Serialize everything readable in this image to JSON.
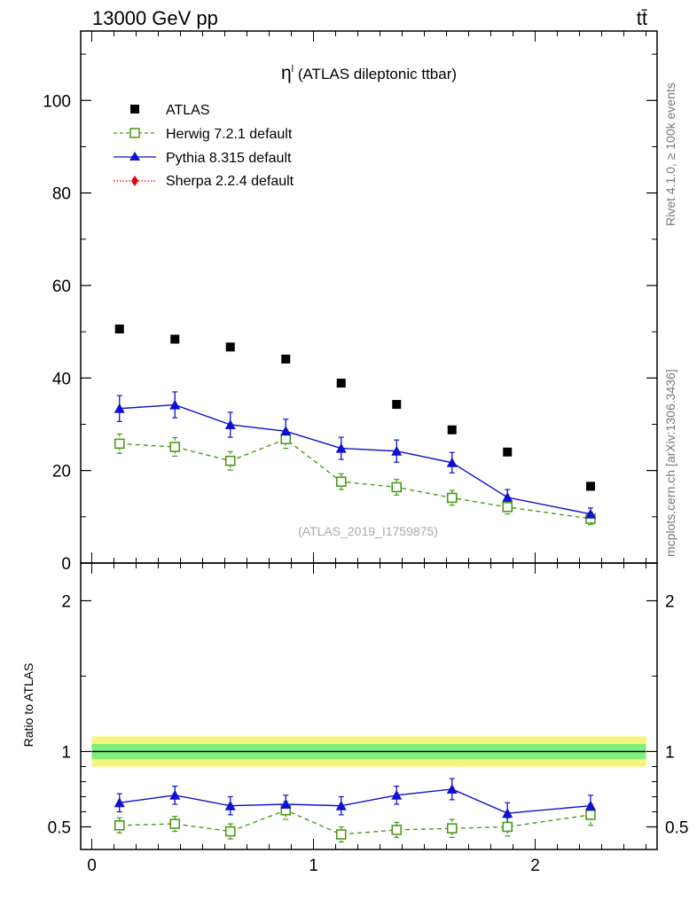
{
  "header": {
    "left": "13000 GeV pp",
    "right": "tt̄"
  },
  "side": {
    "rivet": "Rivet 4.1.0, ≥ 100k events",
    "mcplots": "mcplots.cern.ch [arXiv:1306.3436]"
  },
  "colors": {
    "atlas": "#000000",
    "herwig": "#4a9a1a",
    "pythia": "#1010d0",
    "sherpa": "#e00000",
    "band_inner": "#7ff07f",
    "band_outer": "#f5f57a"
  },
  "chart_data": [
    {
      "type": "scatter",
      "panel": "main",
      "title": "η",
      "title_sup": "l",
      "title_rest": " (ATLAS dileptonic ttbar)",
      "watermark": "(ATLAS_2019_I1759875)",
      "xlabel": "",
      "ylabel": "",
      "xlim": [
        -0.05,
        2.55
      ],
      "ylim": [
        0,
        115
      ],
      "yticks": [
        0,
        20,
        40,
        60,
        80,
        100
      ],
      "ytick_labels": [
        "0",
        "20",
        "40",
        "60",
        "80",
        "100"
      ],
      "x": [
        0.125,
        0.375,
        0.625,
        0.875,
        1.125,
        1.375,
        1.625,
        1.875,
        2.25
      ],
      "legend": [
        "ATLAS",
        "Herwig 7.2.1 default",
        "Pythia 8.315 default",
        "Sherpa 2.2.4 default"
      ],
      "series": [
        {
          "name": "ATLAS",
          "style": "square",
          "values": [
            50.6,
            48.4,
            46.7,
            44.1,
            38.9,
            34.3,
            28.8,
            24.0,
            16.6
          ]
        },
        {
          "name": "Herwig 7.2.1 default",
          "style": "open-square-dashed",
          "values": [
            25.8,
            25.1,
            22.1,
            26.8,
            17.6,
            16.4,
            14.1,
            12.1,
            9.6
          ],
          "errors": [
            2.1,
            2.0,
            2.0,
            2.0,
            1.7,
            1.7,
            1.6,
            1.5,
            1.3
          ]
        },
        {
          "name": "Pythia 8.315 default",
          "style": "triangle-solid",
          "values": [
            33.4,
            34.2,
            29.9,
            28.5,
            24.8,
            24.2,
            21.7,
            14.2,
            10.6
          ],
          "errors": [
            2.8,
            2.8,
            2.7,
            2.6,
            2.4,
            2.4,
            2.2,
            1.7,
            1.3
          ]
        },
        {
          "name": "Sherpa 2.2.4 default",
          "style": "diamond-dotted",
          "values": []
        }
      ]
    },
    {
      "type": "line",
      "panel": "ratio",
      "ylabel": "Ratio to ATLAS",
      "xlim": [
        -0.05,
        2.55
      ],
      "ylim": [
        0.35,
        2.25
      ],
      "yticks": [
        0.5,
        1,
        2
      ],
      "ytick_labels": [
        "0.5",
        "1",
        "2"
      ],
      "xticks": [
        0,
        1,
        2
      ],
      "xtick_labels": [
        "0",
        "1",
        "2"
      ],
      "x": [
        0.125,
        0.375,
        0.625,
        0.875,
        1.125,
        1.375,
        1.625,
        1.875,
        2.25
      ],
      "band": {
        "inner": 0.05,
        "outer": 0.1
      },
      "series": [
        {
          "name": "Herwig 7.2.1 default",
          "values": [
            0.51,
            0.52,
            0.47,
            0.61,
            0.45,
            0.48,
            0.49,
            0.5,
            0.58
          ],
          "errors": [
            0.05,
            0.05,
            0.05,
            0.06,
            0.05,
            0.05,
            0.06,
            0.06,
            0.07
          ]
        },
        {
          "name": "Pythia 8.315 default",
          "values": [
            0.66,
            0.71,
            0.64,
            0.65,
            0.64,
            0.71,
            0.75,
            0.59,
            0.64
          ],
          "errors": [
            0.06,
            0.06,
            0.06,
            0.06,
            0.06,
            0.06,
            0.07,
            0.07,
            0.07
          ]
        }
      ]
    }
  ]
}
